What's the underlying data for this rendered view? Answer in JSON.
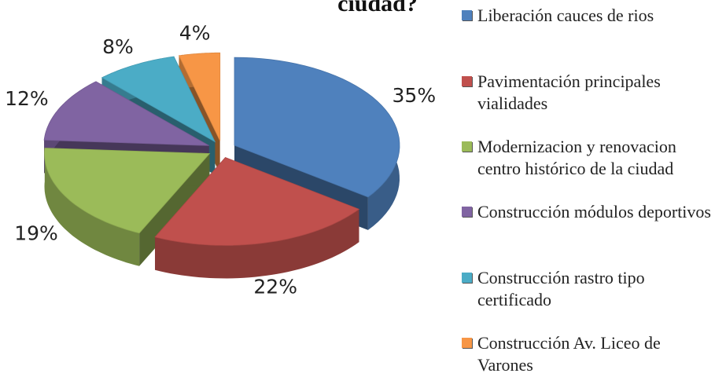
{
  "chart_data": {
    "type": "pie",
    "title": "ciudad?",
    "categories": [
      "Liberación cauces de rios",
      "Pavimentación principales vialidades",
      "Modernizacion y renovacion centro histórico de la ciudad",
      "Construcción módulos deportivos",
      "Construcción rastro tipo certificado",
      "Construcción Av. Liceo de Varones"
    ],
    "values": [
      35,
      22,
      19,
      12,
      8,
      4
    ],
    "value_labels": [
      "35%",
      "22%",
      "19%",
      "12%",
      "8%",
      "4%"
    ],
    "colors": [
      "#4f81bd",
      "#c0504d",
      "#9bbb59",
      "#8064a2",
      "#4bacc6",
      "#f79646"
    ],
    "legend": "right"
  }
}
